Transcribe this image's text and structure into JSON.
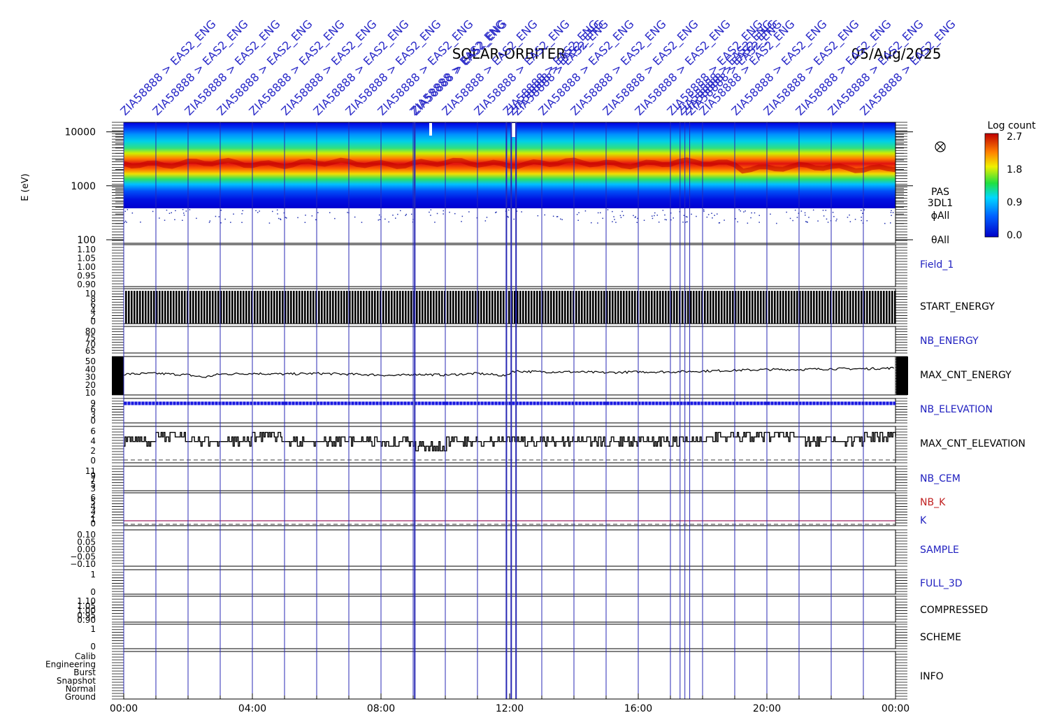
{
  "header": {
    "title": "SOLAR-ORBITER",
    "date": "05/Aug/2025",
    "command_labels": [
      "ZIA58888 > EAS2_ENG"
    ]
  },
  "colorbar": {
    "title": "Log count",
    "ticks": [
      "2.7",
      "1.8",
      "0.9",
      "0.0"
    ]
  },
  "time_axis": {
    "labels": [
      "00:00",
      "04:00",
      "08:00",
      "12:00",
      "16:00",
      "20:00",
      "00:00"
    ]
  },
  "chart_data": [
    {
      "type": "heatmap",
      "name": "energy-spectrogram",
      "ylabel": "E (eV)",
      "yscale": "log",
      "ylim": [
        100,
        15000
      ],
      "ytick_labels": [
        "10000",
        "1000",
        "100"
      ],
      "xlim_hours": [
        0,
        24
      ],
      "peak_energy_eV": 2600,
      "side_labels": [
        "PAS",
        "3DL1",
        "ϕAll",
        "θAll"
      ],
      "zlabel": "Log count",
      "zlim": [
        0.0,
        2.7
      ]
    },
    {
      "type": "line",
      "name": "Field_1",
      "label_color": "#2020c0",
      "ytick_labels": [
        "1.10",
        "1.05",
        "1.00",
        "0.95",
        "0.90"
      ]
    },
    {
      "type": "bar",
      "name": "START_ENERGY",
      "label_color": "#000000",
      "ytick_labels": [
        "10",
        "8",
        "6",
        "4",
        "2",
        "0"
      ],
      "ylim": [
        0,
        10
      ],
      "value": 10
    },
    {
      "type": "line",
      "name": "NB_ENERGY",
      "label_color": "#2020c0",
      "ytick_labels": [
        "80",
        "75",
        "70",
        "65"
      ]
    },
    {
      "type": "line",
      "name": "MAX_CNT_ENERGY",
      "label_color": "#000000",
      "ytick_labels": [
        "50",
        "40",
        "30",
        "20",
        "10"
      ],
      "ylim": [
        5,
        55
      ],
      "x_hours": [
        0,
        1,
        2,
        2.5,
        3,
        4,
        5,
        6,
        7,
        8,
        8.5,
        9,
        10,
        11,
        11.9,
        12.1,
        13,
        14,
        15,
        16,
        17,
        18,
        19,
        20,
        21,
        22,
        23,
        24
      ],
      "values": [
        32,
        33,
        31,
        28,
        32,
        33,
        32,
        33,
        32,
        31,
        30,
        32,
        31,
        33,
        30,
        36,
        35,
        35,
        34,
        35,
        35,
        36,
        37,
        38,
        38,
        39,
        39,
        40
      ]
    },
    {
      "type": "line",
      "name": "NB_ELEVATION",
      "label_color": "#2020c0",
      "ytick_labels": [
        "9",
        "6",
        "3",
        "0"
      ],
      "ylim": [
        0,
        10
      ],
      "value": 8
    },
    {
      "type": "line",
      "name": "MAX_CNT_ELEVATION",
      "label_color": "#000000",
      "ytick_labels": [
        "6",
        "4",
        "2",
        "0"
      ],
      "ylim": [
        0,
        7
      ],
      "x_hours": [
        0,
        1,
        1.5,
        2,
        2.5,
        3,
        4,
        5,
        6,
        7,
        8,
        9,
        10,
        11,
        12,
        13,
        14,
        15,
        16,
        17,
        18,
        19,
        20,
        21,
        22,
        23,
        24
      ],
      "values": [
        4,
        5,
        5,
        4,
        4,
        4,
        5,
        4,
        4,
        4,
        4,
        3,
        4,
        4,
        4,
        4,
        4,
        4,
        4,
        4,
        5,
        5,
        5,
        4,
        4,
        5,
        5
      ]
    },
    {
      "type": "line",
      "name": "NB_CEM",
      "label_color": "#2020c0",
      "ytick_labels": [
        "11",
        "9",
        "7",
        "5",
        "3"
      ]
    },
    {
      "type": "line",
      "name": "NB_K",
      "label_color": "#c02020",
      "ytick_labels": [
        "6",
        "5",
        "4",
        "3",
        "2",
        "1",
        "0"
      ],
      "value": 1
    },
    {
      "type": "line",
      "name": "K",
      "label_color": "#2020c0"
    },
    {
      "type": "line",
      "name": "SAMPLE",
      "label_color": "#2020c0",
      "ytick_labels": [
        "0.10",
        "0.05",
        "0.00",
        "−0.05",
        "−0.10"
      ]
    },
    {
      "type": "line",
      "name": "FULL_3D",
      "label_color": "#2020c0",
      "ytick_labels": [
        "1",
        "0"
      ]
    },
    {
      "type": "line",
      "name": "COMPRESSED",
      "label_color": "#000000",
      "ytick_labels": [
        "1.10",
        "1.05",
        "1.00",
        "0.95",
        "0.90"
      ]
    },
    {
      "type": "line",
      "name": "SCHEME",
      "label_color": "#000000",
      "ytick_labels": [
        "1",
        "0"
      ]
    },
    {
      "type": "line",
      "name": "INFO",
      "label_color": "#000000",
      "ytick_labels": [
        "Calib",
        "Engineering",
        "Burst",
        "Snapshot",
        "Normal",
        "Ground"
      ]
    }
  ],
  "event_hours": [
    0,
    1,
    2,
    3,
    4,
    5,
    6,
    7,
    8,
    9,
    9.05,
    10,
    11,
    11.9,
    12.05,
    12.2,
    13,
    14,
    15,
    16,
    17,
    17.3,
    17.45,
    17.6,
    18,
    19,
    20,
    21,
    22,
    23
  ],
  "colors": {
    "axis": "#000000",
    "event_line": "#2828b4",
    "cmd_label": "#2a2ac8",
    "heat_low": "#0000ff",
    "heat_high": "#d01010"
  }
}
